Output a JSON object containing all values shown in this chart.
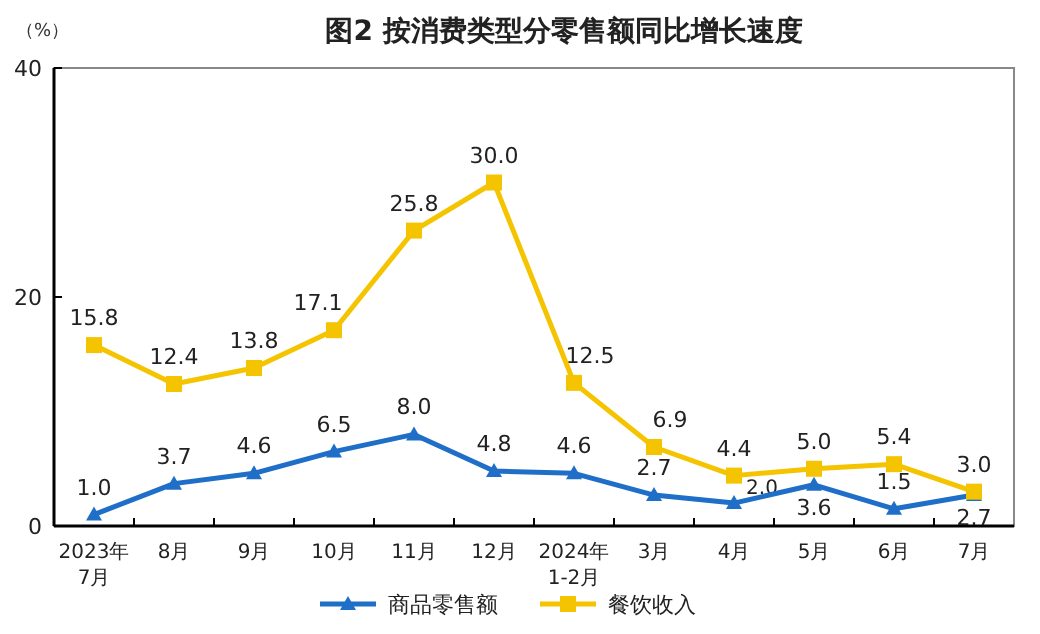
{
  "chart_data": {
    "type": "line",
    "title": "图2  按消费类型分零售额同比增长速度",
    "ylabel": "（%）",
    "categories": [
      "2023年\n7月",
      "8月",
      "9月",
      "10月",
      "11月",
      "12月",
      "2024年\n1-2月",
      "3月",
      "4月",
      "5月",
      "6月",
      "7月"
    ],
    "series": [
      {
        "name": "商品零售额",
        "color": "#1f6fc8",
        "marker": "triangle",
        "values": [
          1.0,
          3.7,
          4.6,
          6.5,
          8.0,
          4.8,
          4.6,
          2.7,
          2.0,
          3.6,
          1.5,
          2.7
        ],
        "value_labels": [
          "1.0",
          "3.7",
          "4.6",
          "6.5",
          "8.0",
          "4.8",
          "4.6",
          "2.7",
          "2.0",
          "3.6",
          "1.5",
          "2.7"
        ]
      },
      {
        "name": "餐饮收入",
        "color": "#f5c400",
        "marker": "square",
        "values": [
          15.8,
          12.4,
          13.8,
          17.1,
          25.8,
          30.0,
          12.5,
          6.9,
          4.4,
          5.0,
          5.4,
          3.0
        ],
        "value_labels": [
          "15.8",
          "12.4",
          "13.8",
          "17.1",
          "25.8",
          "30.0",
          "12.5",
          "6.9",
          "4.4",
          "5.0",
          "5.4",
          "3.0"
        ]
      }
    ],
    "ylim": [
      0,
      40
    ],
    "yticks": [
      0,
      20,
      40
    ],
    "legend": "bottom"
  }
}
